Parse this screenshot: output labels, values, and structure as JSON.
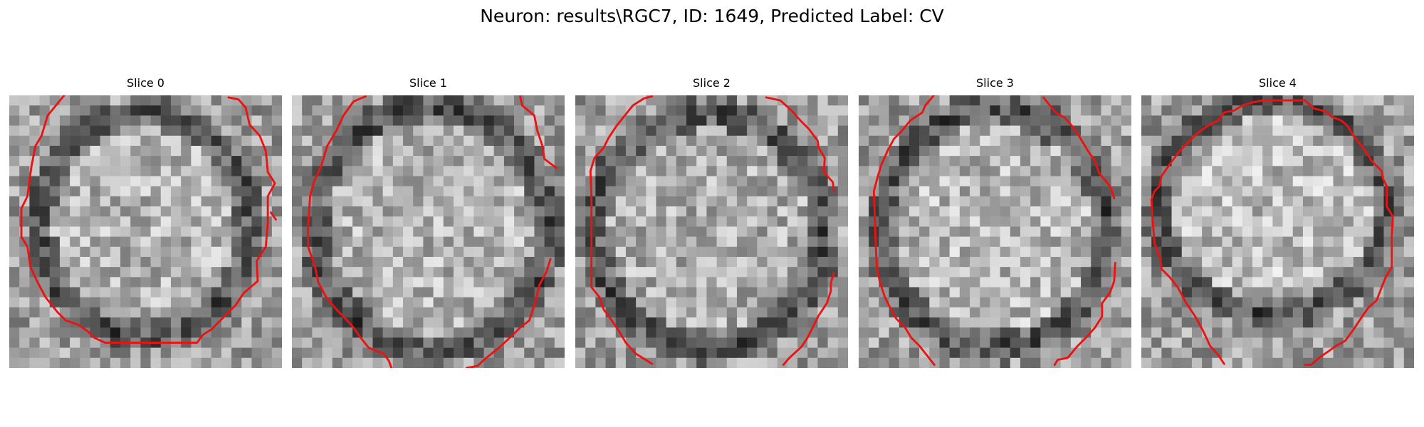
{
  "figure": {
    "title": "Neuron: results\\RGC7, ID: 1649, Predicted Label: CV"
  },
  "colors": {
    "contour": "#ee1111",
    "background": "#ffffff"
  },
  "panels": [
    {
      "title": "Slice 0",
      "contours": [
        [
          [
            5.6,
            -0.2
          ],
          [
            3.8,
            2
          ],
          [
            3.2,
            4
          ],
          [
            2.6,
            5
          ],
          [
            2.2,
            7
          ],
          [
            1.8,
            10
          ],
          [
            1.2,
            11.2
          ],
          [
            1.2,
            14
          ],
          [
            1.8,
            15
          ],
          [
            2.1,
            17
          ],
          [
            2.8,
            18.5
          ],
          [
            3.6,
            20
          ],
          [
            4.8,
            21.5
          ],
          [
            5.6,
            22.3
          ],
          [
            6.8,
            22.7
          ],
          [
            7.8,
            23.4
          ],
          [
            8.4,
            24
          ],
          [
            9.5,
            24.5
          ],
          [
            13.5,
            24.5
          ],
          [
            18.6,
            24.5
          ],
          [
            19.2,
            23.7
          ],
          [
            20,
            23.2
          ],
          [
            21.2,
            22
          ],
          [
            22.4,
            20.8
          ],
          [
            23.2,
            19.6
          ],
          [
            24.6,
            18.4
          ],
          [
            24.5,
            16.4
          ],
          [
            25.4,
            15
          ],
          [
            25.6,
            12.6
          ],
          [
            25.6,
            10
          ],
          [
            26.3,
            8.7
          ],
          [
            25.6,
            7.6
          ],
          [
            25.4,
            5.5
          ],
          [
            24.8,
            4
          ],
          [
            23.8,
            2.9
          ],
          [
            23.4,
            1.2
          ],
          [
            22.7,
            0.4
          ],
          [
            21.7,
            0.2
          ]
        ],
        [
          [
            26.4,
            12.3
          ],
          [
            25.9,
            11.6
          ]
        ]
      ]
    },
    {
      "title": "Slice 1",
      "contours": [
        [
          [
            7.3,
            0.1
          ],
          [
            6.1,
            0.6
          ],
          [
            5.1,
            2
          ],
          [
            4.4,
            3.5
          ],
          [
            3.5,
            5
          ],
          [
            2.9,
            7
          ],
          [
            2.2,
            8.5
          ],
          [
            1.8,
            10
          ],
          [
            1.6,
            13
          ],
          [
            1.6,
            15
          ],
          [
            2.3,
            17
          ],
          [
            2.6,
            18.5
          ],
          [
            3.4,
            20
          ],
          [
            4.4,
            21.2
          ],
          [
            5.2,
            22
          ],
          [
            6.1,
            23
          ],
          [
            6.8,
            24
          ],
          [
            7.6,
            25
          ],
          [
            9.1,
            25.6
          ],
          [
            9.6,
            26.3
          ],
          [
            10,
            27.4
          ]
        ],
        [
          [
            22.6,
            0.1
          ],
          [
            22.8,
            1
          ],
          [
            24,
            2
          ],
          [
            24.3,
            3.5
          ],
          [
            24.8,
            5
          ],
          [
            25,
            6.3
          ],
          [
            26.2,
            7.2
          ]
        ],
        [
          [
            17.1,
            27.4
          ],
          [
            17.3,
            27
          ],
          [
            18.4,
            26.8
          ],
          [
            19,
            26.2
          ],
          [
            20.5,
            25
          ],
          [
            21.8,
            23.8
          ],
          [
            22.6,
            23
          ],
          [
            23.5,
            22.3
          ],
          [
            24.1,
            20.5
          ],
          [
            24.5,
            18.8
          ],
          [
            25.2,
            17.5
          ],
          [
            25.6,
            16.2
          ]
        ]
      ]
    },
    {
      "title": "Slice 2",
      "contours": [
        [
          [
            7.6,
            0.1
          ],
          [
            6.8,
            0.3
          ],
          [
            5.7,
            1
          ],
          [
            4.9,
            2
          ],
          [
            4.1,
            3
          ],
          [
            3.3,
            4.2
          ],
          [
            2.8,
            5.2
          ],
          [
            1.9,
            6.2
          ],
          [
            1.5,
            7.5
          ],
          [
            1.6,
            10
          ],
          [
            1.6,
            14
          ],
          [
            1.6,
            17
          ],
          [
            1.6,
            19
          ],
          [
            2.4,
            20
          ],
          [
            2.8,
            21.2
          ],
          [
            3.4,
            22
          ],
          [
            4.3,
            23.3
          ],
          [
            5,
            24.5
          ],
          [
            6,
            25.6
          ],
          [
            7.3,
            26.4
          ],
          [
            7.6,
            26.6
          ]
        ],
        [
          [
            18.9,
            0.2
          ],
          [
            20.3,
            0.5
          ],
          [
            21.4,
            1.5
          ],
          [
            22.3,
            2.5
          ],
          [
            23.1,
            3.3
          ],
          [
            24,
            4.5
          ],
          [
            24.1,
            5.2
          ],
          [
            24.7,
            6.2
          ],
          [
            24.6,
            7.6
          ],
          [
            25.5,
            8.6
          ],
          [
            25.6,
            9.5
          ]
        ],
        [
          [
            20.6,
            26.7
          ],
          [
            21.2,
            26
          ],
          [
            22.4,
            24.9
          ],
          [
            23,
            24
          ],
          [
            23.6,
            22.8
          ],
          [
            24.1,
            21.8
          ],
          [
            24.9,
            20.6
          ],
          [
            25.3,
            19.4
          ],
          [
            25.3,
            18.6
          ],
          [
            25.6,
            17.6
          ]
        ]
      ]
    },
    {
      "title": "Slice 3",
      "contours": [
        [
          [
            7.6,
            -0.2
          ],
          [
            6.6,
            1
          ],
          [
            6.3,
            1.7
          ],
          [
            5.1,
            2.5
          ],
          [
            4.3,
            3.5
          ],
          [
            3.5,
            4.3
          ],
          [
            2.9,
            5.4
          ],
          [
            2.2,
            7
          ],
          [
            1.9,
            8
          ],
          [
            1.5,
            9.5
          ],
          [
            1.6,
            12
          ],
          [
            1.7,
            15
          ],
          [
            1.8,
            17
          ],
          [
            2.1,
            18.5
          ],
          [
            2.6,
            20
          ],
          [
            3.1,
            21
          ],
          [
            3.7,
            22.1
          ],
          [
            4.6,
            23
          ],
          [
            5.2,
            24
          ],
          [
            6,
            24.8
          ],
          [
            6.8,
            25.8
          ],
          [
            7.5,
            26.7
          ]
        ],
        [
          [
            18.3,
            0.2
          ],
          [
            19.5,
            1.7
          ],
          [
            20.4,
            2.2
          ],
          [
            21.1,
            3
          ],
          [
            21.8,
            4
          ],
          [
            22.7,
            5.5
          ],
          [
            23.4,
            6.5
          ],
          [
            23.8,
            7.7
          ],
          [
            24.9,
            9
          ],
          [
            25.3,
            10.2
          ]
        ],
        [
          [
            19.4,
            26.7
          ],
          [
            19.7,
            26.2
          ],
          [
            20.7,
            26
          ],
          [
            21.6,
            24.9
          ],
          [
            22.5,
            24
          ],
          [
            23.4,
            23
          ],
          [
            24.1,
            21.9
          ],
          [
            24.1,
            20.6
          ],
          [
            24.9,
            19.5
          ],
          [
            25.3,
            18.4
          ],
          [
            25.4,
            16.6
          ]
        ]
      ]
    },
    {
      "title": "Slice 4",
      "contours": [
        [
          [
            1.9,
            16.3
          ],
          [
            1.3,
            14.6
          ],
          [
            1.1,
            12
          ],
          [
            1,
            10.3
          ],
          [
            1.3,
            9.5
          ],
          [
            1.8,
            9
          ],
          [
            2,
            8
          ],
          [
            2.9,
            6.7
          ],
          [
            3.8,
            5.5
          ],
          [
            4.6,
            4.7
          ],
          [
            5.6,
            3.7
          ],
          [
            6.6,
            3
          ],
          [
            7.6,
            2.5
          ],
          [
            8.2,
            1.7
          ],
          [
            9.2,
            1.5
          ],
          [
            10,
            1
          ],
          [
            11,
            0.7
          ],
          [
            12,
            0.5
          ],
          [
            14,
            0.5
          ],
          [
            16.2,
            0.5
          ],
          [
            17.1,
            1.3
          ],
          [
            18.3,
            1.6
          ],
          [
            18.8,
            2.1
          ],
          [
            19.8,
            2.5
          ],
          [
            20.4,
            3
          ],
          [
            21,
            4
          ],
          [
            22.2,
            5.5
          ],
          [
            22.8,
            6.5
          ],
          [
            23.8,
            7.5
          ],
          [
            23.9,
            8.2
          ],
          [
            24.3,
            9
          ],
          [
            24.3,
            11
          ],
          [
            24.9,
            12
          ],
          [
            24.8,
            14
          ],
          [
            24.8,
            16
          ],
          [
            24.8,
            17
          ],
          [
            24.2,
            18
          ],
          [
            23.8,
            19
          ],
          [
            23.3,
            20.3
          ],
          [
            22.5,
            21
          ],
          [
            21.8,
            22
          ],
          [
            21,
            23.2
          ],
          [
            20.2,
            24.3
          ],
          [
            19.3,
            24.8
          ],
          [
            18.6,
            25.3
          ],
          [
            17.6,
            26
          ],
          [
            16.8,
            26.7
          ],
          [
            16.2,
            26.7
          ]
        ],
        [
          [
            1.9,
            16.3
          ],
          [
            2,
            17.2
          ],
          [
            2.8,
            18
          ],
          [
            3.6,
            19
          ],
          [
            4.4,
            20.5
          ],
          [
            5.4,
            22
          ],
          [
            6.2,
            23.5
          ],
          [
            6.8,
            24.8
          ],
          [
            7.6,
            25.7
          ],
          [
            8.2,
            26.6
          ]
        ]
      ]
    }
  ]
}
